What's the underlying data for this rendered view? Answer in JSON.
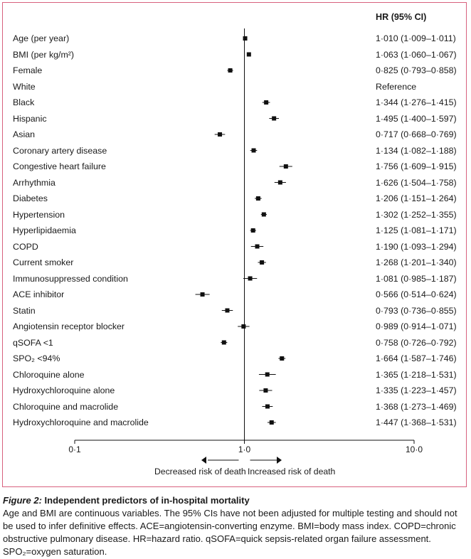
{
  "chart_data": {
    "type": "forest",
    "scale": "log",
    "xlim": [
      0.1,
      10.0
    ],
    "reference_value": 1.0,
    "ticks": [
      {
        "value": 0.1,
        "label": "0·1"
      },
      {
        "value": 1.0,
        "label": "1·0"
      },
      {
        "value": 10.0,
        "label": "10·0"
      }
    ],
    "column_header": "HR (95% CI)",
    "decrease_label": "Decreased risk of death",
    "increase_label": "Increased risk of death",
    "rows": [
      {
        "label": "Age (per year)",
        "hr": 1.01,
        "low": 1.009,
        "high": 1.011,
        "text": "1·010 (1·009–1·011)"
      },
      {
        "label": "BMI (per kg/m²)",
        "hr": 1.063,
        "low": 1.06,
        "high": 1.067,
        "text": "1·063 (1·060–1·067)"
      },
      {
        "label": "Female",
        "hr": 0.825,
        "low": 0.793,
        "high": 0.858,
        "text": "0·825 (0·793–0·858)"
      },
      {
        "label": "White",
        "hr": null,
        "low": null,
        "high": null,
        "text": "Reference"
      },
      {
        "label": "Black",
        "hr": 1.344,
        "low": 1.276,
        "high": 1.415,
        "text": "1·344 (1·276–1·415)"
      },
      {
        "label": "Hispanic",
        "hr": 1.495,
        "low": 1.4,
        "high": 1.597,
        "text": "1·495 (1·400–1·597)"
      },
      {
        "label": "Asian",
        "hr": 0.717,
        "low": 0.668,
        "high": 0.769,
        "text": "0·717 (0·668–0·769)"
      },
      {
        "label": "Coronary artery disease",
        "hr": 1.134,
        "low": 1.082,
        "high": 1.188,
        "text": "1·134 (1·082–1·188)"
      },
      {
        "label": "Congestive heart failure",
        "hr": 1.756,
        "low": 1.609,
        "high": 1.915,
        "text": "1·756 (1·609–1·915)"
      },
      {
        "label": "Arrhythmia",
        "hr": 1.626,
        "low": 1.504,
        "high": 1.758,
        "text": "1·626 (1·504–1·758)"
      },
      {
        "label": "Diabetes",
        "hr": 1.206,
        "low": 1.151,
        "high": 1.264,
        "text": "1·206 (1·151–1·264)"
      },
      {
        "label": "Hypertension",
        "hr": 1.302,
        "low": 1.252,
        "high": 1.355,
        "text": "1·302 (1·252–1·355)"
      },
      {
        "label": "Hyperlipidaemia",
        "hr": 1.125,
        "low": 1.081,
        "high": 1.171,
        "text": "1·125 (1·081–1·171)"
      },
      {
        "label": "COPD",
        "hr": 1.19,
        "low": 1.093,
        "high": 1.294,
        "text": "1·190 (1·093–1·294)"
      },
      {
        "label": "Current smoker",
        "hr": 1.268,
        "low": 1.201,
        "high": 1.34,
        "text": "1·268 (1·201–1·340)"
      },
      {
        "label": "Immunosuppressed condition",
        "hr": 1.081,
        "low": 0.985,
        "high": 1.187,
        "text": "1·081 (0·985–1·187)"
      },
      {
        "label": "ACE inhibitor",
        "hr": 0.566,
        "low": 0.514,
        "high": 0.624,
        "text": "0·566 (0·514–0·624)"
      },
      {
        "label": "Statin",
        "hr": 0.793,
        "low": 0.736,
        "high": 0.855,
        "text": "0·793 (0·736–0·855)"
      },
      {
        "label": "Angiotensin receptor blocker",
        "hr": 0.989,
        "low": 0.914,
        "high": 1.071,
        "text": "0·989 (0·914–1·071)"
      },
      {
        "label": "qSOFA <1",
        "hr": 0.758,
        "low": 0.726,
        "high": 0.792,
        "text": "0·758 (0·726–0·792)"
      },
      {
        "label": "SPO₂ <94%",
        "hr": 1.664,
        "low": 1.587,
        "high": 1.746,
        "text": "1·664 (1·587–1·746)"
      },
      {
        "label": "Chloroquine alone",
        "hr": 1.365,
        "low": 1.218,
        "high": 1.531,
        "text": "1·365 (1·218–1·531)"
      },
      {
        "label": "Hydroxychloroquine alone",
        "hr": 1.335,
        "low": 1.223,
        "high": 1.457,
        "text": "1·335 (1·223–1·457)"
      },
      {
        "label": "Chloroquine and macrolide",
        "hr": 1.368,
        "low": 1.273,
        "high": 1.469,
        "text": "1·368 (1·273–1·469)"
      },
      {
        "label": "Hydroxychloroquine and macrolide",
        "hr": 1.447,
        "low": 1.368,
        "high": 1.531,
        "text": "1·447 (1·368–1·531)"
      }
    ]
  },
  "caption": {
    "figure_label": "Figure 2:",
    "title": "Independent predictors of in-hospital mortality",
    "body": "Age and BMI are continuous variables. The 95% CIs have not been adjusted for multiple testing and should not be used to infer definitive effects. ACE=angiotensin-converting enzyme. BMI=body mass index. COPD=chronic obstructive pulmonary disease. HR=hazard ratio. qSOFA=quick sepsis-related organ failure assessment. SPO₂=oxygen saturation."
  },
  "colors": {
    "frame": "#d8617e",
    "ink": "#111111"
  }
}
